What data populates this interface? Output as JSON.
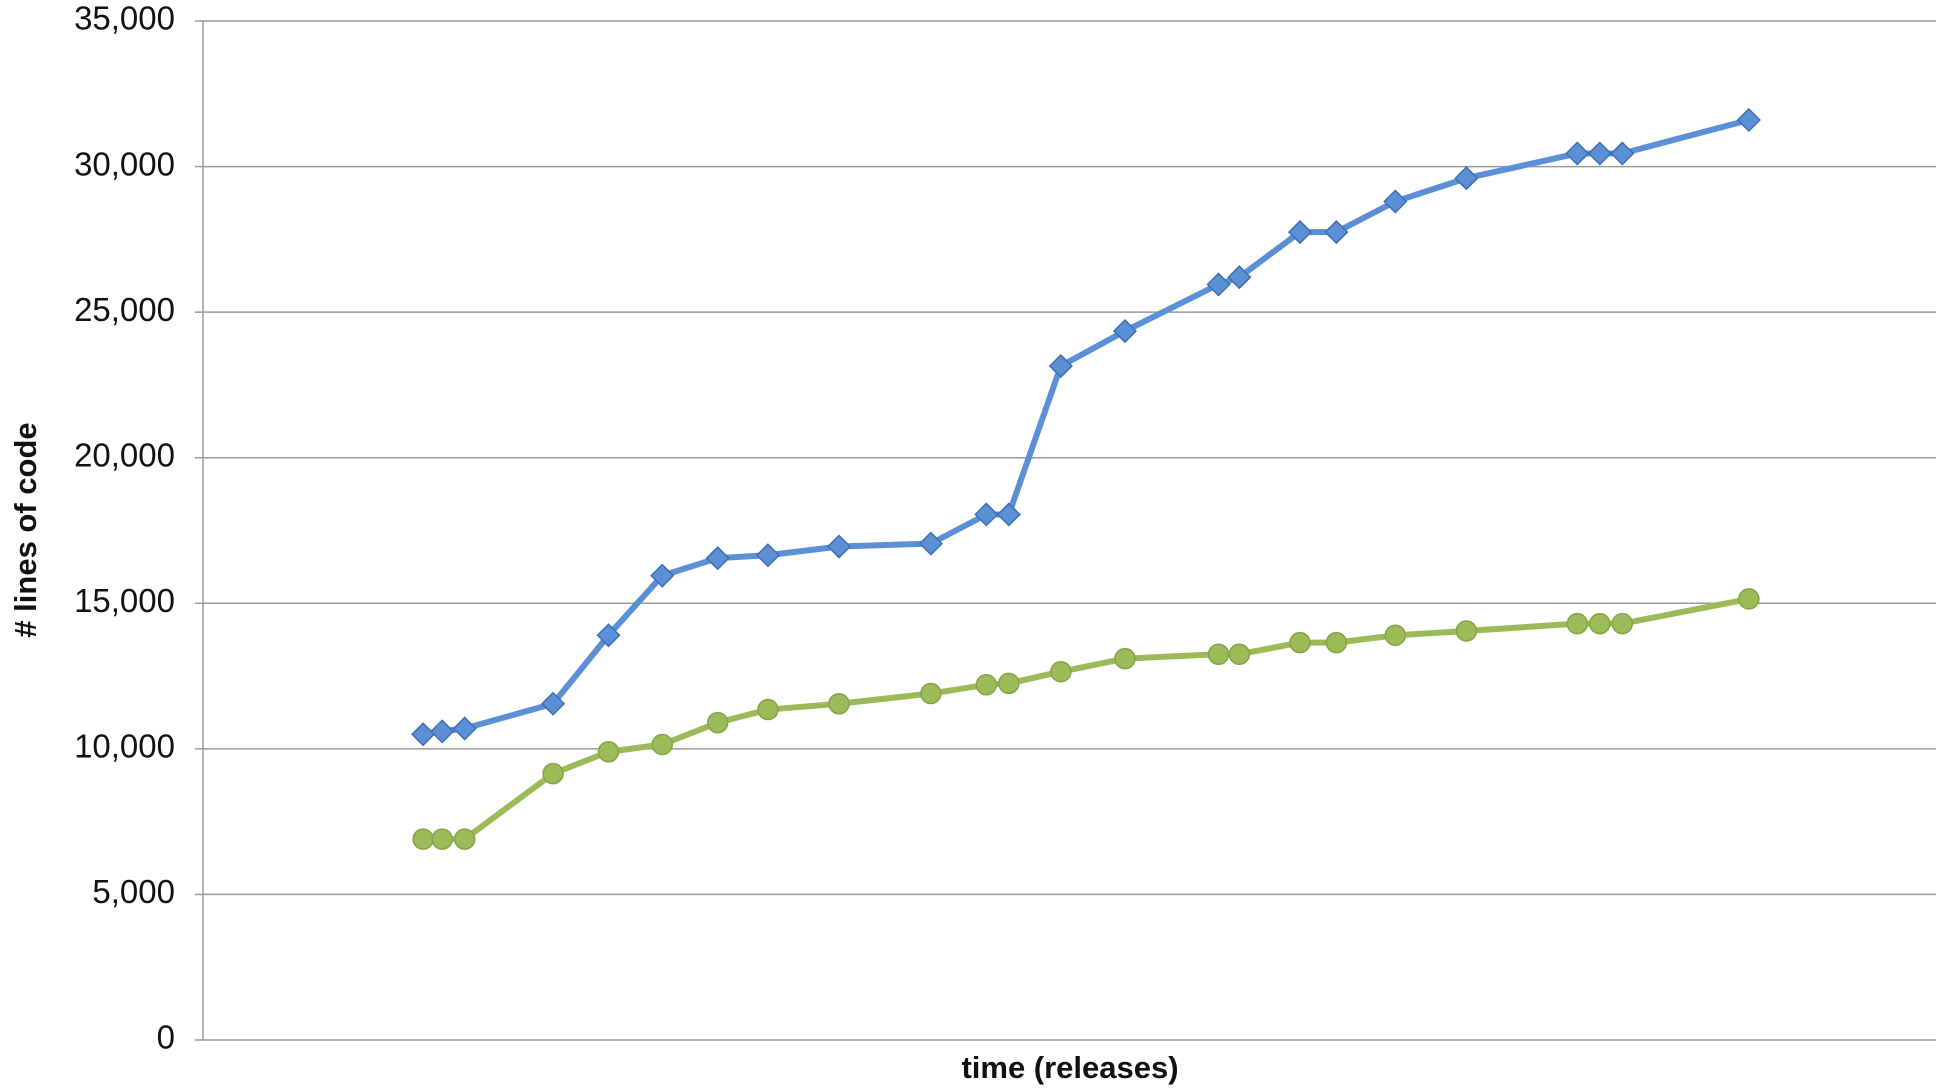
{
  "chart_data": {
    "type": "line",
    "y_label": "# lines of code",
    "x_label": "time (releases)",
    "xlim": [
      0,
      100
    ],
    "ylim": [
      0,
      35000
    ],
    "yticks": [
      0,
      {
        "value": 5000,
        "label": "5,000"
      },
      {
        "value": 10000,
        "label": "10,000"
      },
      {
        "value": 15000,
        "label": "15,000"
      },
      {
        "value": 20000,
        "label": "20,000"
      },
      {
        "value": 25000,
        "label": "25,000"
      },
      {
        "value": 30000,
        "label": "30,000"
      },
      {
        "value": 35000,
        "label": "35,000"
      }
    ],
    "grid": true,
    "x": [
      12.7,
      13.8,
      15.1,
      20.2,
      23.4,
      26.5,
      29.7,
      32.6,
      36.7,
      42.0,
      45.2,
      46.5,
      49.5,
      53.2,
      58.6,
      59.8,
      63.3,
      65.4,
      68.8,
      72.9,
      79.3,
      80.6,
      81.9,
      89.2
    ],
    "series": [
      {
        "color": "#5b8fd6",
        "marker": "diamond",
        "values": [
          10500,
          10600,
          10700,
          11550,
          13900,
          15950,
          16550,
          16650,
          16950,
          17050,
          18050,
          18050,
          23150,
          24350,
          25950,
          26200,
          27750,
          27750,
          28800,
          29600,
          30450,
          30450,
          30450,
          31600
        ]
      },
      {
        "color": "#9bbb59",
        "marker": "circle",
        "values": [
          6900,
          6900,
          6900,
          9150,
          9900,
          10150,
          10900,
          11350,
          11550,
          11900,
          12200,
          12250,
          12650,
          13100,
          13250,
          13250,
          13650,
          13650,
          13900,
          14050,
          14300,
          14300,
          14300,
          15150
        ]
      }
    ]
  }
}
